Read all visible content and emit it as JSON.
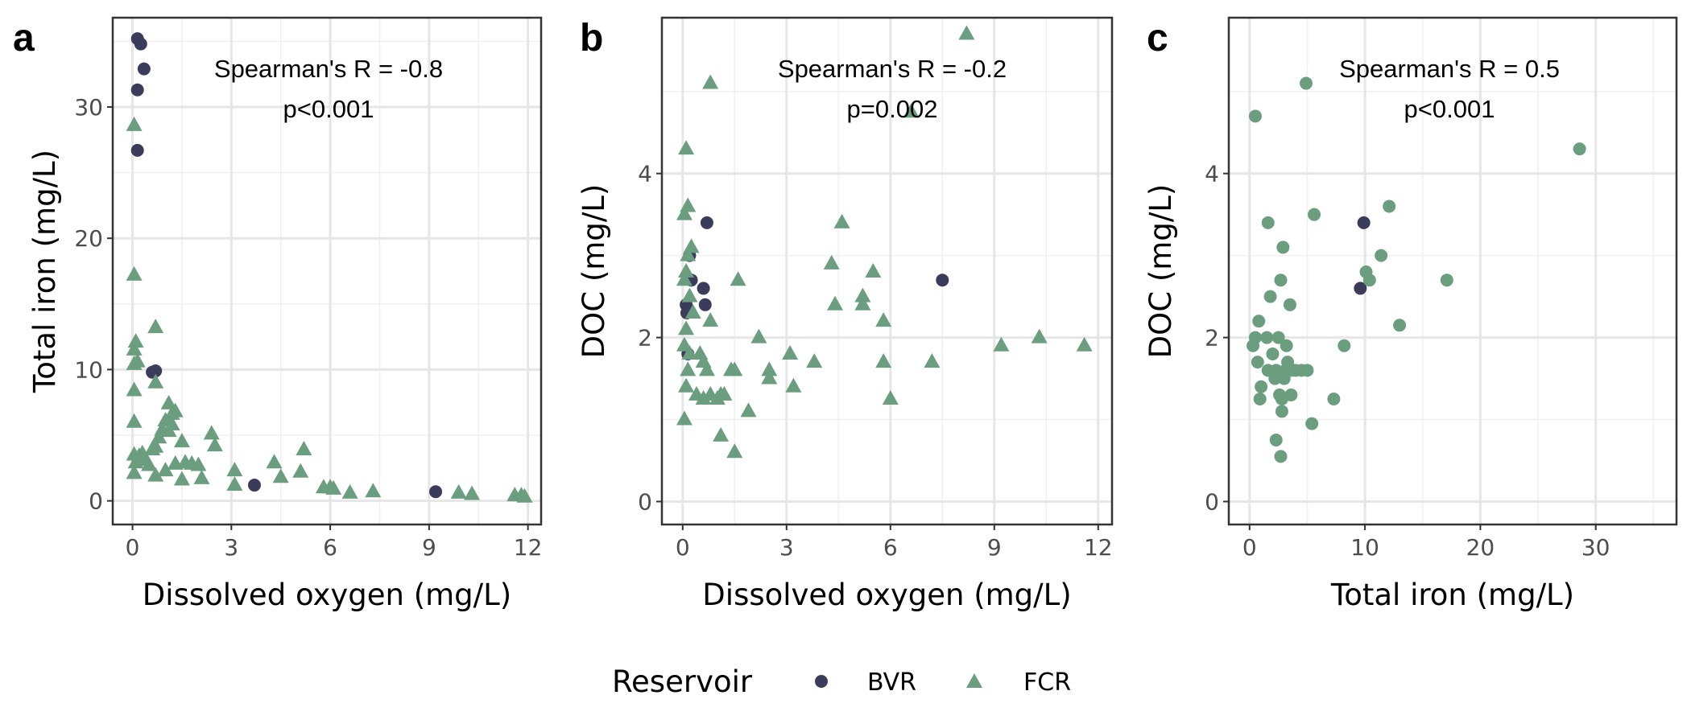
{
  "legend": {
    "title": "Reservoir",
    "items": [
      {
        "label": "BVR",
        "color": "#3b3b5c",
        "shape": "circle"
      },
      {
        "label": "FCR",
        "color": "#6b9e7e",
        "shape": "triangle"
      }
    ]
  },
  "chart_data": [
    {
      "panel": "a",
      "type": "scatter",
      "xlabel": "Dissolved oxygen (mg/L)",
      "ylabel": "Total iron (mg/L)",
      "xlim": [
        -0.6,
        12.4
      ],
      "ylim": [
        -1.8,
        36.8
      ],
      "xticks": [
        0,
        3,
        6,
        9,
        12
      ],
      "yticks": [
        0,
        10,
        20,
        30
      ],
      "annotation": [
        "Spearman's R = -0.8",
        "p<0.001"
      ],
      "grid": true,
      "series": [
        {
          "name": "BVR",
          "marker": "circle",
          "points": [
            [
              0.15,
              35.2
            ],
            [
              0.25,
              34.8
            ],
            [
              0.35,
              32.9
            ],
            [
              0.15,
              31.3
            ],
            [
              0.15,
              26.7
            ],
            [
              0.6,
              9.8
            ],
            [
              0.7,
              9.9
            ],
            [
              3.7,
              1.2
            ],
            [
              9.2,
              0.7
            ]
          ]
        },
        {
          "name": "FCR",
          "marker": "triangle",
          "points": [
            [
              0.05,
              28.6
            ],
            [
              0.05,
              17.2
            ],
            [
              0.1,
              12.1
            ],
            [
              0.05,
              11.5
            ],
            [
              0.15,
              10.6
            ],
            [
              0.05,
              10.4
            ],
            [
              0.05,
              8.4
            ],
            [
              0.05,
              6.0
            ],
            [
              0.05,
              3.5
            ],
            [
              0.1,
              2.9
            ],
            [
              0.05,
              2.1
            ],
            [
              0.2,
              3.4
            ],
            [
              0.3,
              3.6
            ],
            [
              0.4,
              3.1
            ],
            [
              0.5,
              2.7
            ],
            [
              0.6,
              3.9
            ],
            [
              0.7,
              9.0
            ],
            [
              0.7,
              4.1
            ],
            [
              0.8,
              4.8
            ],
            [
              0.9,
              5.4
            ],
            [
              1.0,
              6.1
            ],
            [
              1.1,
              7.4
            ],
            [
              1.1,
              5.3
            ],
            [
              1.2,
              6.6
            ],
            [
              1.3,
              6.8
            ],
            [
              1.2,
              5.8
            ],
            [
              1.3,
              2.8
            ],
            [
              1.5,
              4.5
            ],
            [
              1.6,
              2.9
            ],
            [
              1.8,
              2.8
            ],
            [
              2.0,
              2.7
            ],
            [
              0.7,
              13.2
            ],
            [
              0.7,
              1.9
            ],
            [
              1.0,
              2.3
            ],
            [
              1.5,
              1.6
            ],
            [
              2.1,
              1.7
            ],
            [
              2.4,
              5.1
            ],
            [
              2.5,
              4.2
            ],
            [
              3.1,
              2.3
            ],
            [
              3.1,
              1.2
            ],
            [
              4.3,
              2.9
            ],
            [
              4.5,
              1.8
            ],
            [
              5.2,
              3.9
            ],
            [
              5.1,
              2.2
            ],
            [
              5.8,
              1.0
            ],
            [
              6.0,
              1.0
            ],
            [
              6.1,
              0.9
            ],
            [
              6.6,
              0.6
            ],
            [
              7.3,
              0.7
            ],
            [
              9.9,
              0.6
            ],
            [
              10.3,
              0.5
            ],
            [
              11.6,
              0.4
            ],
            [
              11.8,
              0.4
            ],
            [
              11.9,
              0.3
            ]
          ]
        }
      ]
    },
    {
      "panel": "b",
      "type": "scatter",
      "xlabel": "Dissolved oxygen (mg/L)",
      "ylabel": "DOC (mg/L)",
      "xlim": [
        -0.6,
        12.4
      ],
      "ylim": [
        -0.28,
        5.9
      ],
      "xticks": [
        0,
        3,
        6,
        9,
        12
      ],
      "yticks": [
        0,
        2,
        4
      ],
      "annotation": [
        "Spearman's R = -0.2",
        "p=0.002"
      ],
      "grid": true,
      "series": [
        {
          "name": "BVR",
          "marker": "circle",
          "points": [
            [
              0.7,
              3.4
            ],
            [
              0.2,
              3.0
            ],
            [
              0.25,
              2.7
            ],
            [
              0.6,
              2.6
            ],
            [
              0.65,
              2.4
            ],
            [
              0.1,
              2.4
            ],
            [
              0.12,
              2.3
            ],
            [
              0.15,
              1.8
            ],
            [
              7.5,
              2.7
            ]
          ]
        },
        {
          "name": "FCR",
          "marker": "triangle",
          "points": [
            [
              0.1,
              4.3
            ],
            [
              0.15,
              3.6
            ],
            [
              0.05,
              3.5
            ],
            [
              0.25,
              3.1
            ],
            [
              0.15,
              3.0
            ],
            [
              0.1,
              2.8
            ],
            [
              0.05,
              2.7
            ],
            [
              0.2,
              2.5
            ],
            [
              0.3,
              2.3
            ],
            [
              0.1,
              2.1
            ],
            [
              0.05,
              1.9
            ],
            [
              0.2,
              1.8
            ],
            [
              0.15,
              1.6
            ],
            [
              0.1,
              1.4
            ],
            [
              0.05,
              1.0
            ],
            [
              0.5,
              1.8
            ],
            [
              0.6,
              1.7
            ],
            [
              0.7,
              1.6
            ],
            [
              0.4,
              1.3
            ],
            [
              0.6,
              1.25
            ],
            [
              0.8,
              1.3
            ],
            [
              1.0,
              1.25
            ],
            [
              1.1,
              1.3
            ],
            [
              1.2,
              1.3
            ],
            [
              1.4,
              1.6
            ],
            [
              1.5,
              1.6
            ],
            [
              1.6,
              2.7
            ],
            [
              0.8,
              2.2
            ],
            [
              1.9,
              1.1
            ],
            [
              1.1,
              0.8
            ],
            [
              1.5,
              0.6
            ],
            [
              2.2,
              2.0
            ],
            [
              2.5,
              1.6
            ],
            [
              2.5,
              1.5
            ],
            [
              3.1,
              1.8
            ],
            [
              3.2,
              1.4
            ],
            [
              3.8,
              1.7
            ],
            [
              4.3,
              2.9
            ],
            [
              4.4,
              2.4
            ],
            [
              4.6,
              3.4
            ],
            [
              5.2,
              2.5
            ],
            [
              5.2,
              2.4
            ],
            [
              5.5,
              2.8
            ],
            [
              5.8,
              2.2
            ],
            [
              5.8,
              1.7
            ],
            [
              6.0,
              1.25
            ],
            [
              6.6,
              4.75
            ],
            [
              7.2,
              1.7
            ],
            [
              8.2,
              5.7
            ],
            [
              0.8,
              5.1
            ],
            [
              9.2,
              1.9
            ],
            [
              10.3,
              2.0
            ],
            [
              11.6,
              1.9
            ]
          ]
        }
      ]
    },
    {
      "panel": "c",
      "type": "scatter",
      "xlabel": "Total iron (mg/L)",
      "ylabel": "DOC (mg/L)",
      "xlim": [
        -1.8,
        37.0
      ],
      "ylim": [
        -0.28,
        5.9
      ],
      "xticks": [
        0,
        10,
        20,
        30
      ],
      "yticks": [
        0,
        2,
        4
      ],
      "annotation": [
        "Spearman's R = 0.5",
        "p<0.001"
      ],
      "grid": true,
      "series": [
        {
          "name": "BVR",
          "marker": "circle",
          "points": [
            [
              9.9,
              3.4
            ],
            [
              9.6,
              2.6
            ]
          ]
        },
        {
          "name": "FCR",
          "marker": "circle",
          "points": [
            [
              0.5,
              4.7
            ],
            [
              4.9,
              5.1
            ],
            [
              28.6,
              4.3
            ],
            [
              0.5,
              2.0
            ],
            [
              0.3,
              1.9
            ],
            [
              0.8,
              2.2
            ],
            [
              0.7,
              1.7
            ],
            [
              1.0,
              1.4
            ],
            [
              0.9,
              1.25
            ],
            [
              1.5,
              2.0
            ],
            [
              1.6,
              1.6
            ],
            [
              1.8,
              2.5
            ],
            [
              2.0,
              1.8
            ],
            [
              2.2,
              1.5
            ],
            [
              2.3,
              1.6
            ],
            [
              2.5,
              2.0
            ],
            [
              2.6,
              1.3
            ],
            [
              2.7,
              2.7
            ],
            [
              2.8,
              1.25
            ],
            [
              2.8,
              1.1
            ],
            [
              2.9,
              3.1
            ],
            [
              3.0,
              1.5
            ],
            [
              3.1,
              1.6
            ],
            [
              3.2,
              1.9
            ],
            [
              3.3,
              1.7
            ],
            [
              3.5,
              2.4
            ],
            [
              3.6,
              1.3
            ],
            [
              3.7,
              1.6
            ],
            [
              4.0,
              1.6
            ],
            [
              4.5,
              1.6
            ],
            [
              5.0,
              1.6
            ],
            [
              5.6,
              3.5
            ],
            [
              5.4,
              0.95
            ],
            [
              7.3,
              1.25
            ],
            [
              8.2,
              1.9
            ],
            [
              10.1,
              2.8
            ],
            [
              10.4,
              2.7
            ],
            [
              11.4,
              3.0
            ],
            [
              12.1,
              3.6
            ],
            [
              13.0,
              2.15
            ],
            [
              17.1,
              2.7
            ],
            [
              1.6,
              3.4
            ],
            [
              2.3,
              0.75
            ],
            [
              2.7,
              0.55
            ]
          ]
        }
      ]
    }
  ]
}
